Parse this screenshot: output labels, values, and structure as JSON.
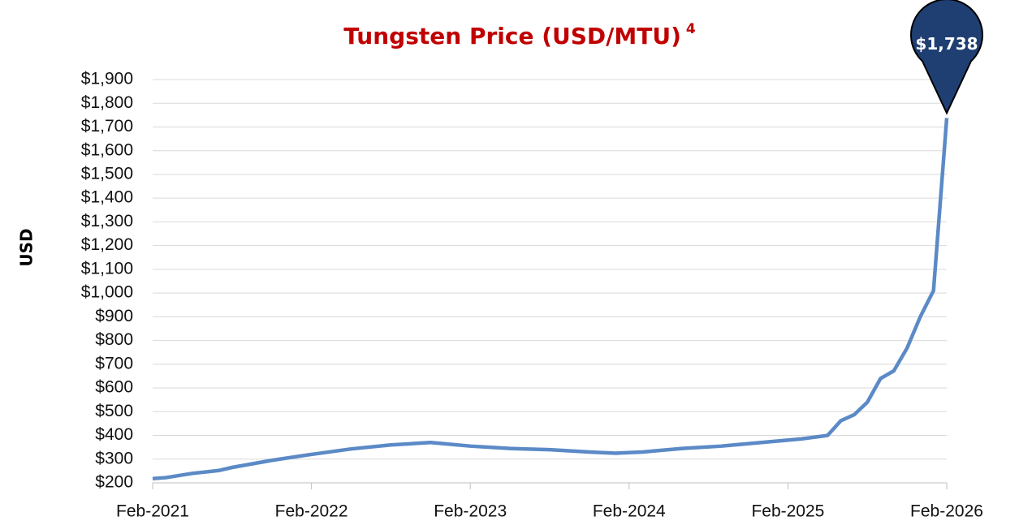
{
  "chart_data": {
    "type": "line",
    "title": "Tungsten Price (USD/MTU)",
    "title_note": "4",
    "y_label": "USD",
    "x": [
      "Feb-2021",
      "Mar-2021",
      "May-2021",
      "Jul-2021",
      "Aug-2021",
      "Nov-2021",
      "Feb-2022",
      "May-2022",
      "Aug-2022",
      "Nov-2022",
      "Feb-2023",
      "May-2023",
      "Aug-2023",
      "Nov-2023",
      "Jan-2024",
      "Mar-2024",
      "Jun-2024",
      "Sep-2024",
      "Dec-2024",
      "Mar-2025",
      "May-2025",
      "Jun-2025",
      "Jul-2025",
      "Aug-2025",
      "Sep-2025",
      "Oct-2025",
      "Nov-2025",
      "Dec-2025",
      "Jan-2026",
      "Feb-2026"
    ],
    "series": [
      {
        "name": "Tungsten",
        "color": "#5b8ac6",
        "values": [
          218,
          222,
          240,
          252,
          265,
          295,
          320,
          343,
          360,
          370,
          355,
          345,
          340,
          330,
          325,
          330,
          345,
          355,
          370,
          385,
          400,
          462,
          487,
          540,
          640,
          672,
          768,
          900,
          1010,
          1738
        ]
      }
    ],
    "annotation": "$1,738",
    "xticks": [
      "Feb-2021",
      "Feb-2022",
      "Feb-2023",
      "Feb-2024",
      "Feb-2025",
      "Feb-2026"
    ],
    "ylim": [
      200,
      1900
    ],
    "yticks": [
      {
        "value": 200,
        "label": "$200"
      },
      {
        "value": 300,
        "label": "$300"
      },
      {
        "value": 400,
        "label": "$400"
      },
      {
        "value": 500,
        "label": "$500"
      },
      {
        "value": 600,
        "label": "$600"
      },
      {
        "value": 700,
        "label": "$700"
      },
      {
        "value": 800,
        "label": "$800"
      },
      {
        "value": 900,
        "label": "$900"
      },
      {
        "value": 1000,
        "label": "$1,000"
      },
      {
        "value": 1100,
        "label": "$1,100"
      },
      {
        "value": 1200,
        "label": "$1,200"
      },
      {
        "value": 1300,
        "label": "$1,300"
      },
      {
        "value": 1400,
        "label": "$1,400"
      },
      {
        "value": 1500,
        "label": "$1,500"
      },
      {
        "value": 1600,
        "label": "$1,600"
      },
      {
        "value": 1700,
        "label": "$1,700"
      },
      {
        "value": 1800,
        "label": "$1,800"
      },
      {
        "value": 1900,
        "label": "$1,900"
      }
    ],
    "grid": true
  }
}
